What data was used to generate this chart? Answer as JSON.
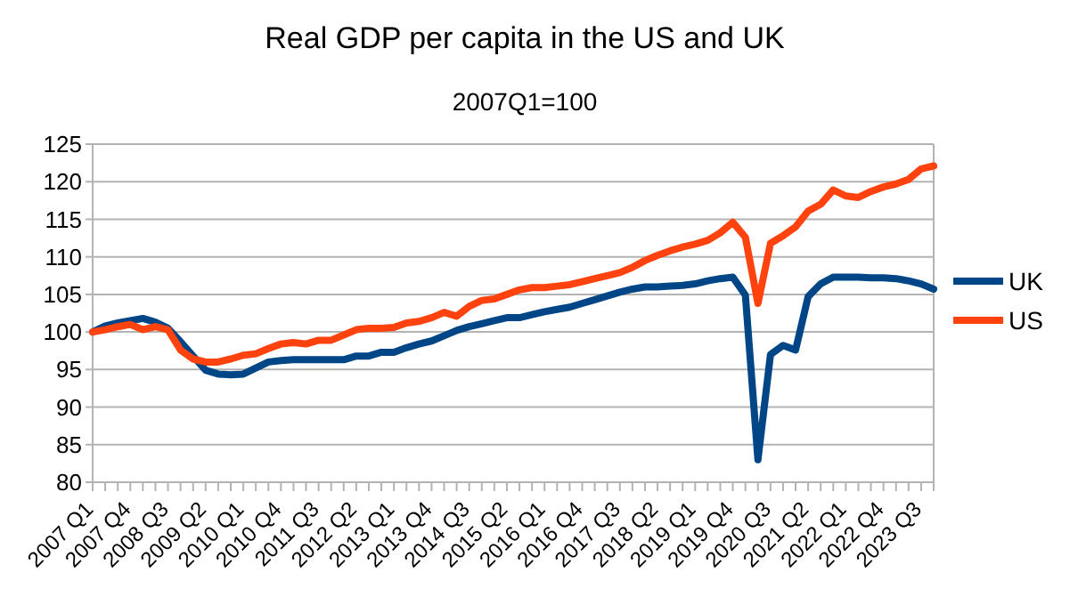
{
  "chart_data": {
    "type": "line",
    "title": "Real GDP per capita in the US and UK",
    "subtitle": "2007Q1=100",
    "categories": [
      "2007 Q1",
      null,
      null,
      "2007 Q4",
      null,
      null,
      "2008 Q3",
      null,
      null,
      "2009 Q2",
      null,
      null,
      "2010 Q1",
      null,
      null,
      "2010 Q4",
      null,
      null,
      "2011 Q3",
      null,
      null,
      "2012 Q2",
      null,
      null,
      "2013 Q1",
      null,
      null,
      "2013 Q4",
      null,
      null,
      "2014 Q3",
      null,
      null,
      "2015 Q2",
      null,
      null,
      "2016 Q1",
      null,
      null,
      "2016 Q4",
      null,
      null,
      "2017 Q3",
      null,
      null,
      "2018 Q2",
      null,
      null,
      "2019 Q1",
      null,
      null,
      "2019 Q4",
      null,
      null,
      "2020 Q3",
      null,
      null,
      "2021 Q2",
      null,
      null,
      "2022 Q1",
      null,
      null,
      "2022 Q4",
      null,
      null,
      "2023 Q3",
      null
    ],
    "series": [
      {
        "name": "UK",
        "color": "#004586",
        "values": [
          100,
          100.8,
          101.2,
          101.5,
          101.8,
          101.3,
          100.5,
          98.7,
          96.8,
          94.9,
          94.4,
          94.3,
          94.4,
          95.2,
          96.0,
          96.2,
          96.3,
          96.3,
          96.3,
          96.3,
          96.3,
          96.8,
          96.8,
          97.3,
          97.3,
          97.9,
          98.4,
          98.8,
          99.5,
          100.2,
          100.7,
          101.1,
          101.5,
          101.9,
          101.9,
          102.3,
          102.7,
          103.0,
          103.3,
          103.8,
          104.3,
          104.8,
          105.3,
          105.7,
          106.0,
          106.0,
          106.1,
          106.2,
          106.4,
          106.8,
          107.1,
          107.3,
          104.9,
          83.0,
          97.0,
          98.2,
          97.6,
          104.7,
          106.4,
          107.3,
          107.3,
          107.3,
          107.2,
          107.2,
          107.1,
          106.8,
          106.4,
          105.7
        ]
      },
      {
        "name": "US",
        "color": "#ff420e",
        "values": [
          100,
          100.3,
          100.7,
          101.0,
          100.3,
          100.7,
          100.3,
          97.6,
          96.4,
          96.0,
          96.0,
          96.4,
          96.9,
          97.1,
          97.8,
          98.4,
          98.6,
          98.4,
          98.9,
          98.9,
          99.6,
          100.3,
          100.5,
          100.5,
          100.6,
          101.2,
          101.4,
          101.9,
          102.6,
          102.1,
          103.4,
          104.2,
          104.4,
          105.0,
          105.6,
          105.9,
          105.9,
          106.1,
          106.3,
          106.7,
          107.1,
          107.5,
          107.9,
          108.6,
          109.5,
          110.2,
          110.8,
          111.3,
          111.7,
          112.2,
          113.2,
          114.6,
          112.6,
          103.8,
          111.8,
          112.8,
          114.0,
          116.1,
          117.0,
          118.9,
          118.1,
          117.9,
          118.7,
          119.3,
          119.7,
          120.3,
          121.7,
          122.1
        ]
      }
    ],
    "ylim": [
      80,
      125
    ],
    "yticks": [
      80,
      85,
      90,
      95,
      100,
      105,
      110,
      115,
      120,
      125
    ],
    "grid": "y",
    "legend": "right",
    "marker": "none",
    "line_style": "solid"
  }
}
